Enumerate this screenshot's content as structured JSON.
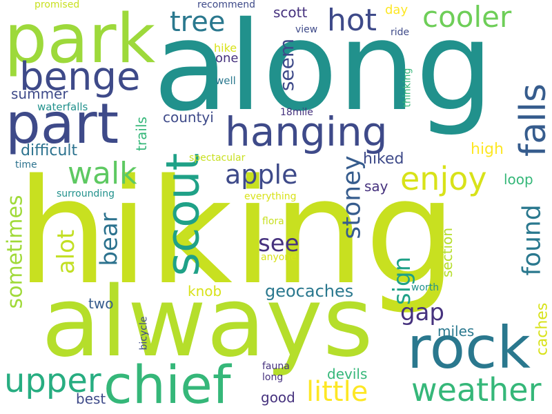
{
  "palette": {
    "purple": "#46327e",
    "indigo": "#3e4a89",
    "blue": "#365c8d",
    "teal_blue": "#2a788e",
    "teal": "#21918c",
    "green_teal": "#1fa187",
    "green": "#35b779",
    "light_green": "#6ece58",
    "yellow_green": "#b5de2b",
    "lime": "#c8e020",
    "yellow": "#fde725"
  },
  "words": [
    {
      "text": "hiking",
      "color": "#c8e020"
    },
    {
      "text": "along",
      "color": "#21918c"
    },
    {
      "text": "always",
      "color": "#b5de2b"
    },
    {
      "text": "park",
      "color": "#9dd93b"
    },
    {
      "text": "hanging",
      "color": "#3e4a89"
    },
    {
      "text": "part",
      "color": "#3e4a89"
    },
    {
      "text": "rock",
      "color": "#2a788e"
    },
    {
      "text": "chief",
      "color": "#35b779"
    },
    {
      "text": "scout",
      "color": "#1fa187"
    },
    {
      "text": "benge",
      "color": "#3e4a89"
    },
    {
      "text": "falls",
      "color": "#365c8d"
    },
    {
      "text": "upper",
      "color": "#27ad81"
    },
    {
      "text": "weather",
      "color": "#35b779"
    },
    {
      "text": "enjoy",
      "color": "#d8e219"
    },
    {
      "text": "walk",
      "color": "#5ec962"
    },
    {
      "text": "cooler",
      "color": "#6ece58"
    },
    {
      "text": "hot",
      "color": "#3e4a89"
    },
    {
      "text": "tree",
      "color": "#2a788e"
    },
    {
      "text": "little",
      "color": "#fde725"
    },
    {
      "text": "apple",
      "color": "#3e4a89"
    },
    {
      "text": "stoney",
      "color": "#365c8d"
    },
    {
      "text": "found",
      "color": "#2a788e"
    },
    {
      "text": "bear",
      "color": "#2c728e"
    },
    {
      "text": "sometimes",
      "color": "#a0da39"
    },
    {
      "text": "alot",
      "color": "#c2df23"
    },
    {
      "text": "see",
      "color": "#46327e"
    },
    {
      "text": "sign",
      "color": "#1fa187"
    },
    {
      "text": "seem",
      "color": "#3e4a89"
    },
    {
      "text": "gap",
      "color": "#46327e"
    },
    {
      "text": "geocaches",
      "color": "#2a788e"
    },
    {
      "text": "section",
      "color": "#b5de2b"
    },
    {
      "text": "caches",
      "color": "#d8e219"
    },
    {
      "text": "difficult",
      "color": "#2c728e"
    },
    {
      "text": "countyi",
      "color": "#3e4a89"
    },
    {
      "text": "summer",
      "color": "#3e4a89"
    },
    {
      "text": "trails",
      "color": "#35b779"
    },
    {
      "text": "high",
      "color": "#fde725"
    },
    {
      "text": "hiked",
      "color": "#3e4a89"
    },
    {
      "text": "loop",
      "color": "#35b779"
    },
    {
      "text": "say",
      "color": "#46327e"
    },
    {
      "text": "knob",
      "color": "#d8e219"
    },
    {
      "text": "two",
      "color": "#365c8d"
    },
    {
      "text": "miles",
      "color": "#2a788e"
    },
    {
      "text": "devils",
      "color": "#35b779"
    },
    {
      "text": "good",
      "color": "#46327e"
    },
    {
      "text": "best",
      "color": "#3e4a89"
    },
    {
      "text": "scott",
      "color": "#46327e"
    },
    {
      "text": "one",
      "color": "#46327e"
    },
    {
      "text": "day",
      "color": "#fde725"
    },
    {
      "text": "hike",
      "color": "#d8e219"
    },
    {
      "text": "well",
      "color": "#2a788e"
    },
    {
      "text": "waterfalls",
      "color": "#21918c"
    },
    {
      "text": "time",
      "color": "#2c728e"
    },
    {
      "text": "thinking",
      "color": "#35b779"
    },
    {
      "text": "18mile",
      "color": "#46327e"
    },
    {
      "text": "spectacular",
      "color": "#c8e020"
    },
    {
      "text": "surrounding",
      "color": "#21918c"
    },
    {
      "text": "everything",
      "color": "#d8e219"
    },
    {
      "text": "flora",
      "color": "#c8e020"
    },
    {
      "text": "anyone",
      "color": "#d8e219"
    },
    {
      "text": "worth",
      "color": "#21918c"
    },
    {
      "text": "bicycle",
      "color": "#3e4a89"
    },
    {
      "text": "fauna",
      "color": "#46327e"
    },
    {
      "text": "long",
      "color": "#46327e"
    },
    {
      "text": "recommend",
      "color": "#3e4a89"
    },
    {
      "text": "promised",
      "color": "#c8e020"
    },
    {
      "text": "view",
      "color": "#3e4a89"
    },
    {
      "text": "ride",
      "color": "#3e4a89"
    }
  ]
}
